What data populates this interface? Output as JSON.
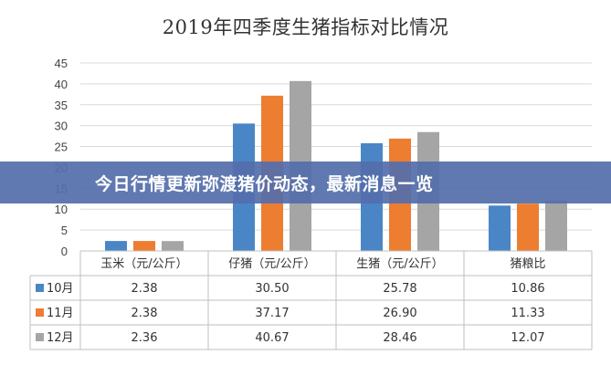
{
  "banner": {
    "text": "今日行情更新弥渡猪价动态，最新消息一览",
    "color": "#546eaa"
  },
  "chart_data": {
    "type": "bar",
    "title": "2019年四季度生猪指标对比情况",
    "categories": [
      "玉米（元/公斤）",
      "仔猪（元/公斤）",
      "生猪（元/公斤）",
      "猪粮比"
    ],
    "series": [
      {
        "name": "10月",
        "color": "#4a86c6",
        "values": [
          2.38,
          30.5,
          25.78,
          10.86
        ],
        "labels": [
          "2.38",
          "30.50",
          "25.78",
          "10.86"
        ]
      },
      {
        "name": "11月",
        "color": "#ed7d31",
        "values": [
          2.38,
          37.17,
          26.9,
          11.33
        ],
        "labels": [
          "2.38",
          "37.17",
          "26.90",
          "11.33"
        ]
      },
      {
        "name": "12月",
        "color": "#a5a5a5",
        "values": [
          2.36,
          40.67,
          28.46,
          12.07
        ],
        "labels": [
          "2.36",
          "40.67",
          "28.46",
          "12.07"
        ]
      }
    ],
    "ylim": [
      0,
      45
    ],
    "yticks": [
      0,
      5,
      10,
      15,
      20,
      25,
      30,
      35,
      40,
      45
    ],
    "grid": true,
    "legend": "data-table"
  }
}
